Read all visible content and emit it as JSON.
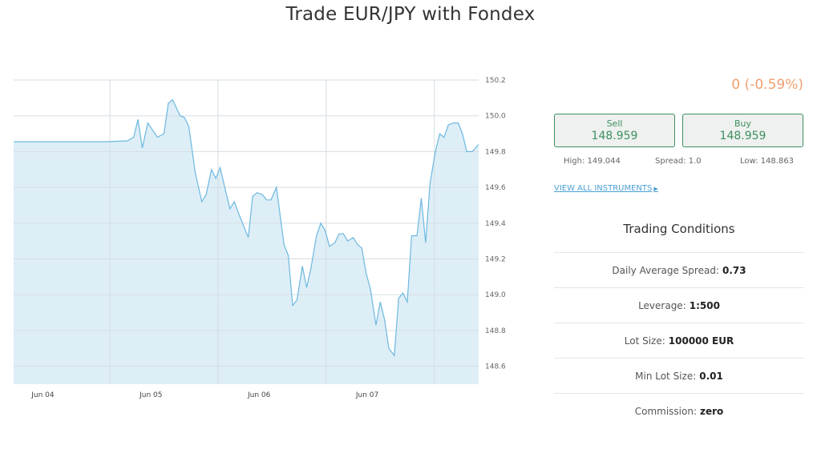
{
  "page": {
    "title": "Trade EUR/JPY with Fondex"
  },
  "quote": {
    "change": "0 (-0.59%)",
    "sell_label": "Sell",
    "sell_value": "148.959",
    "buy_label": "Buy",
    "buy_value": "148.959",
    "high": "High: 149.044",
    "spread": "Spread: 1.0",
    "low": "Low: 148.863",
    "view_all": "VIEW ALL INSTRUMENTS"
  },
  "trading_conditions": {
    "title": "Trading Conditions",
    "rows": [
      {
        "label": "Daily Average Spread:",
        "value": "0.73"
      },
      {
        "label": "Leverage:",
        "value": "1:500"
      },
      {
        "label": "Lot Size:",
        "value": "100000 EUR"
      },
      {
        "label": "Min Lot Size:",
        "value": "0.01"
      },
      {
        "label": "Commission:",
        "value": "zero"
      }
    ]
  },
  "colors": {
    "line": "#6cb8e0",
    "fill": "#deeef7",
    "grid": "#d5dde2",
    "change": "#f0a070",
    "button_border": "#3d8f5f"
  },
  "chart_data": {
    "type": "area",
    "y_ticks": [
      "150.2",
      "150.0",
      "149.8",
      "149.6",
      "149.4",
      "149.2",
      "149.0",
      "148.8",
      "148.6"
    ],
    "x_ticks": [
      "Jun 04",
      "Jun 05",
      "Jun 06",
      "Jun 07"
    ],
    "ylim": [
      148.5,
      150.2
    ],
    "grid": true,
    "series": [
      {
        "values": [
          [
            0,
            149.855
          ],
          [
            0.85,
            149.855
          ],
          [
            1.05,
            149.86
          ],
          [
            1.11,
            149.88
          ],
          [
            1.15,
            149.98
          ],
          [
            1.19,
            149.82
          ],
          [
            1.24,
            149.96
          ],
          [
            1.33,
            149.88
          ],
          [
            1.39,
            149.9
          ],
          [
            1.43,
            150.07
          ],
          [
            1.47,
            150.09
          ],
          [
            1.54,
            150.0
          ],
          [
            1.58,
            149.99
          ],
          [
            1.62,
            149.94
          ],
          [
            1.68,
            149.68
          ],
          [
            1.74,
            149.52
          ],
          [
            1.78,
            149.56
          ],
          [
            1.83,
            149.7
          ],
          [
            1.87,
            149.65
          ],
          [
            1.91,
            149.71
          ],
          [
            1.96,
            149.58
          ],
          [
            2.0,
            149.48
          ],
          [
            2.04,
            149.52
          ],
          [
            2.09,
            149.44
          ],
          [
            2.13,
            149.38
          ],
          [
            2.17,
            149.32
          ],
          [
            2.21,
            149.55
          ],
          [
            2.25,
            149.57
          ],
          [
            2.3,
            149.56
          ],
          [
            2.34,
            149.53
          ],
          [
            2.38,
            149.53
          ],
          [
            2.43,
            149.6
          ],
          [
            2.5,
            149.28
          ],
          [
            2.54,
            149.22
          ],
          [
            2.58,
            148.94
          ],
          [
            2.62,
            148.97
          ],
          [
            2.67,
            149.16
          ],
          [
            2.71,
            149.04
          ],
          [
            2.75,
            149.15
          ],
          [
            2.8,
            149.33
          ],
          [
            2.84,
            149.4
          ],
          [
            2.88,
            149.36
          ],
          [
            2.92,
            149.27
          ],
          [
            2.97,
            149.29
          ],
          [
            3.01,
            149.34
          ],
          [
            3.05,
            149.34
          ],
          [
            3.09,
            149.3
          ],
          [
            3.14,
            149.32
          ],
          [
            3.18,
            149.28
          ],
          [
            3.22,
            149.26
          ],
          [
            3.26,
            149.12
          ],
          [
            3.3,
            149.03
          ],
          [
            3.35,
            148.83
          ],
          [
            3.39,
            148.96
          ],
          [
            3.43,
            148.86
          ],
          [
            3.47,
            148.7
          ],
          [
            3.52,
            148.66
          ],
          [
            3.56,
            148.98
          ],
          [
            3.6,
            149.01
          ],
          [
            3.64,
            148.96
          ],
          [
            3.68,
            149.33
          ],
          [
            3.73,
            149.33
          ],
          [
            3.77,
            149.54
          ],
          [
            3.81,
            149.29
          ],
          [
            3.85,
            149.62
          ],
          [
            3.9,
            149.8
          ],
          [
            3.94,
            149.9
          ],
          [
            3.98,
            149.88
          ],
          [
            4.02,
            149.95
          ],
          [
            4.07,
            149.96
          ],
          [
            4.11,
            149.96
          ],
          [
            4.15,
            149.9
          ],
          [
            4.19,
            149.8
          ],
          [
            4.24,
            149.8
          ],
          [
            4.3,
            149.84
          ]
        ]
      }
    ]
  }
}
